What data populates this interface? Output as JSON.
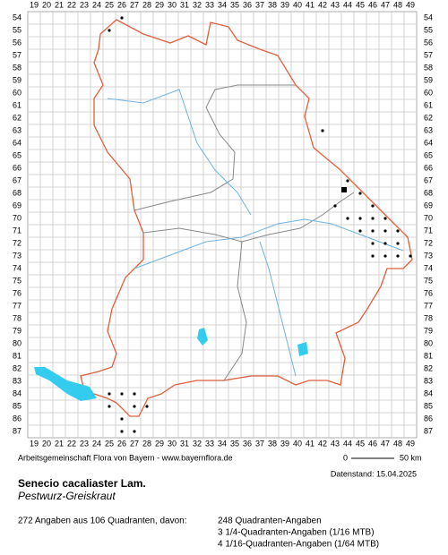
{
  "map": {
    "columns": [
      19,
      20,
      21,
      22,
      23,
      24,
      25,
      26,
      27,
      28,
      29,
      30,
      31,
      32,
      33,
      34,
      35,
      36,
      37,
      38,
      39,
      40,
      41,
      42,
      43,
      44,
      45,
      46,
      47,
      48,
      49
    ],
    "rows": [
      54,
      55,
      56,
      57,
      58,
      59,
      60,
      61,
      62,
      63,
      64,
      65,
      66,
      67,
      68,
      69,
      70,
      71,
      72,
      73,
      74,
      75,
      76,
      77,
      78,
      79,
      80,
      81,
      82,
      83,
      84,
      85,
      86,
      87
    ]
  },
  "footer": {
    "credit": "Arbeitsgemeinschaft Flora von Bayern - www.bayernflora.de",
    "scale_start": "0",
    "scale_end": "50 km",
    "date": "Datenstand: 15.04.2025"
  },
  "species": {
    "scientific_name": "Senecio cacaliaster Lam.",
    "common_name": "Pestwurz-Greiskraut"
  },
  "summary": {
    "total": "272 Angaben aus 106 Quadranten, davon:",
    "lines": [
      "248 Quadranten-Angaben",
      "3 1/4-Quadranten-Angaben (1/16 MTB)",
      "4 1/16-Quadranten-Angaben (1/64 MTB)"
    ]
  }
}
